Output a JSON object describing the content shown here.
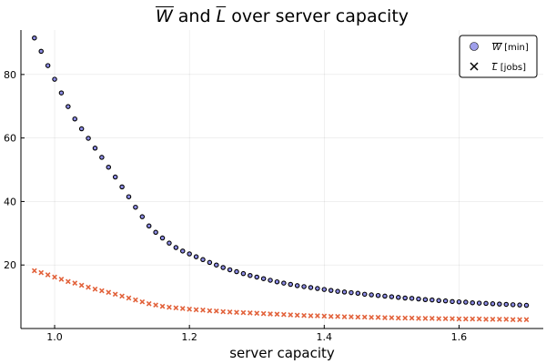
{
  "chart_data": {
    "type": "scatter",
    "title": {
      "prefix": "W",
      "mid": " and ",
      "second": "L",
      "suffix": " over server capacity"
    },
    "xlabel": "server capacity",
    "ylabel": "",
    "xlim": [
      0.95,
      1.725
    ],
    "ylim": [
      0,
      94
    ],
    "xticks": [
      1.0,
      1.2,
      1.4,
      1.6
    ],
    "xtick_labels": [
      "1.0",
      "1.2",
      "1.4",
      "1.6"
    ],
    "yticks": [
      20,
      40,
      60,
      80
    ],
    "ytick_labels": [
      "20",
      "40",
      "60",
      "80"
    ],
    "grid": true,
    "legend_position": "top-right",
    "x": [
      0.97,
      0.98,
      0.99,
      1.0,
      1.01,
      1.02,
      1.03,
      1.04,
      1.05,
      1.06,
      1.07,
      1.08,
      1.09,
      1.1,
      1.11,
      1.12,
      1.13,
      1.14,
      1.15,
      1.16,
      1.17,
      1.18,
      1.19,
      1.2,
      1.21,
      1.22,
      1.23,
      1.24,
      1.25,
      1.26,
      1.27,
      1.28,
      1.29,
      1.3,
      1.31,
      1.32,
      1.33,
      1.34,
      1.35,
      1.36,
      1.37,
      1.38,
      1.39,
      1.4,
      1.41,
      1.42,
      1.43,
      1.44,
      1.45,
      1.46,
      1.47,
      1.48,
      1.49,
      1.5,
      1.51,
      1.52,
      1.53,
      1.54,
      1.55,
      1.56,
      1.57,
      1.58,
      1.59,
      1.6,
      1.61,
      1.62,
      1.63,
      1.64,
      1.65,
      1.66,
      1.67,
      1.68,
      1.69,
      1.7
    ],
    "series": [
      {
        "name": "W",
        "unit": "[min]",
        "marker": "circle",
        "color": "#8e8ee8",
        "edge_color": "#000000",
        "values": [
          91.5,
          87.3,
          82.8,
          78.5,
          74.2,
          69.9,
          66.0,
          62.9,
          59.9,
          56.8,
          53.9,
          50.8,
          47.7,
          44.6,
          41.5,
          38.2,
          35.2,
          32.3,
          30.3,
          28.5,
          26.9,
          25.5,
          24.4,
          23.5,
          22.6,
          21.7,
          20.8,
          20.0,
          19.2,
          18.5,
          17.9,
          17.3,
          16.7,
          16.2,
          15.7,
          15.2,
          14.7,
          14.3,
          13.9,
          13.5,
          13.2,
          12.9,
          12.6,
          12.3,
          12.0,
          11.7,
          11.5,
          11.3,
          11.1,
          10.8,
          10.6,
          10.4,
          10.2,
          10.0,
          9.8,
          9.6,
          9.5,
          9.3,
          9.1,
          9.0,
          8.8,
          8.7,
          8.5,
          8.4,
          8.3,
          8.1,
          8.0,
          7.9,
          7.8,
          7.7,
          7.6,
          7.5,
          7.4,
          7.3
        ]
      },
      {
        "name": "L",
        "unit": "[jobs]",
        "marker": "x",
        "color": "#e2623b",
        "values": [
          18.2,
          17.6,
          16.9,
          16.2,
          15.5,
          14.8,
          14.3,
          13.6,
          13.0,
          12.4,
          11.9,
          11.4,
          10.8,
          10.2,
          9.6,
          9.0,
          8.4,
          7.8,
          7.4,
          7.0,
          6.7,
          6.5,
          6.3,
          6.1,
          5.9,
          5.8,
          5.6,
          5.5,
          5.3,
          5.2,
          5.1,
          5.0,
          4.9,
          4.8,
          4.7,
          4.6,
          4.5,
          4.4,
          4.3,
          4.2,
          4.1,
          4.0,
          4.0,
          3.9,
          3.8,
          3.8,
          3.7,
          3.7,
          3.6,
          3.6,
          3.5,
          3.5,
          3.4,
          3.4,
          3.3,
          3.3,
          3.3,
          3.2,
          3.2,
          3.2,
          3.1,
          3.1,
          3.1,
          3.0,
          3.0,
          3.0,
          3.0,
          2.9,
          2.9,
          2.9,
          2.9,
          2.8,
          2.8,
          2.8
        ]
      }
    ]
  }
}
